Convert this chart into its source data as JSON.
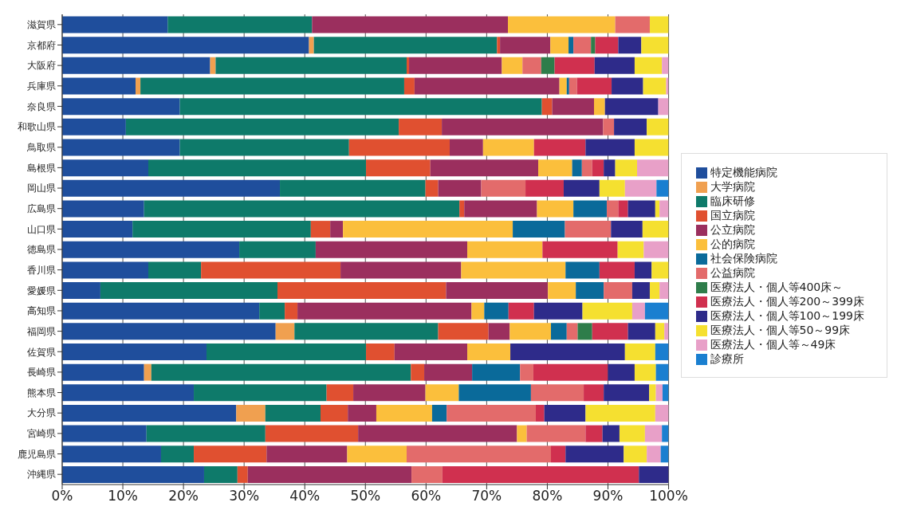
{
  "chart_data": {
    "type": "bar",
    "orientation": "horizontal",
    "stacked": true,
    "categories": [
      "滋賀県",
      "京都府",
      "大阪府",
      "兵庫県",
      "奈良県",
      "和歌山県",
      "鳥取県",
      "島根県",
      "岡山県",
      "広島県",
      "山口県",
      "徳島県",
      "香川県",
      "愛媛県",
      "高知県",
      "福岡県",
      "佐賀県",
      "長崎県",
      "熊本県",
      "大分県",
      "宮崎県",
      "鹿児島県",
      "沖縄県"
    ],
    "series": [
      {
        "name": "特定機能病院",
        "color": "#1f4e9c",
        "values": [
          17.4,
          40.7,
          24.4,
          12.1,
          19.4,
          10.5,
          19.4,
          14.2,
          35.9,
          13.5,
          11.6,
          29.2,
          14.2,
          6.3,
          32.5,
          35.2,
          23.8,
          13.5,
          21.7,
          28.7,
          13.9,
          16.3,
          23.4
        ]
      },
      {
        "name": "大学病院",
        "color": "#f0a050",
        "values": [
          0,
          0.8,
          0.9,
          0.8,
          0,
          0,
          0,
          0,
          0,
          0,
          0,
          0,
          0,
          0,
          0,
          3.1,
          0,
          1.2,
          0,
          4.8,
          0,
          0,
          0
        ]
      },
      {
        "name": "臨床研修",
        "color": "#0e7a6a",
        "values": [
          23.8,
          30.2,
          31.5,
          43.5,
          59.7,
          45.0,
          27.9,
          35.9,
          24.0,
          52.0,
          29.4,
          12.6,
          8.7,
          29.2,
          4.2,
          23.7,
          26.3,
          42.8,
          21.9,
          9.1,
          19.6,
          5.4,
          5.5
        ]
      },
      {
        "name": "国立病院",
        "color": "#e05030",
        "values": [
          0,
          0.5,
          0.4,
          1.7,
          1.7,
          7.1,
          16.6,
          10.6,
          2.1,
          0.8,
          3.2,
          0,
          23.0,
          27.8,
          2.1,
          8.3,
          4.7,
          2.2,
          4.4,
          4.5,
          15.3,
          12.0,
          1.7
        ]
      },
      {
        "name": "公立病院",
        "color": "#9b2f5e",
        "values": [
          32.3,
          8.3,
          15.3,
          23.9,
          6.9,
          26.6,
          5.5,
          17.8,
          7.1,
          12.0,
          2.1,
          25.0,
          19.9,
          16.8,
          28.7,
          3.5,
          12.0,
          7.9,
          11.9,
          4.7,
          26.2,
          13.3,
          27.0
        ]
      },
      {
        "name": "公的病院",
        "color": "#fbbf3c",
        "values": [
          17.7,
          3.0,
          3.4,
          1.2,
          1.8,
          0,
          8.4,
          5.6,
          0,
          6.0,
          28.0,
          12.4,
          17.2,
          4.6,
          2.1,
          6.8,
          7.1,
          0,
          5.5,
          9.2,
          1.6,
          9.8,
          0
        ]
      },
      {
        "name": "社会保険病院",
        "color": "#0a6a9a",
        "values": [
          0,
          0.8,
          0,
          0.4,
          0,
          0,
          0,
          1.6,
          0,
          5.5,
          8.6,
          0,
          5.6,
          4.6,
          4.0,
          2.6,
          0,
          7.9,
          11.9,
          2.4,
          0,
          0,
          0
        ]
      },
      {
        "name": "公益病院",
        "color": "#e36b6b",
        "values": [
          5.7,
          2.9,
          3.1,
          1.3,
          0,
          1.8,
          0,
          1.7,
          7.3,
          1.9,
          7.6,
          0,
          0,
          4.7,
          0,
          1.8,
          0,
          2.2,
          8.7,
          14.7,
          9.7,
          23.8,
          5.1
        ]
      },
      {
        "name": "医療法人・個人等400床～",
        "color": "#2e7d4a",
        "values": [
          0,
          0.7,
          2.2,
          0,
          0,
          0,
          0,
          0,
          0,
          0,
          0,
          0,
          0,
          0,
          0,
          2.4,
          0,
          0,
          0,
          0,
          0,
          0,
          0
        ]
      },
      {
        "name": "医療法人・個人等200～399床",
        "color": "#d0304f",
        "values": [
          0,
          3.8,
          6.6,
          5.7,
          0,
          0,
          8.5,
          1.9,
          6.3,
          1.6,
          0,
          12.4,
          5.8,
          0,
          4.2,
          5.9,
          0,
          12.3,
          3.3,
          1.4,
          2.8,
          2.4,
          32.4
        ]
      },
      {
        "name": "医療法人・個人等100～199床",
        "color": "#2e2b8a",
        "values": [
          0,
          3.8,
          6.6,
          5.2,
          8.8,
          5.4,
          8.1,
          1.9,
          5.9,
          4.5,
          5.2,
          0,
          2.8,
          2.9,
          8.0,
          4.5,
          18.9,
          4.4,
          7.5,
          6.8,
          2.8,
          9.6,
          4.9
        ]
      },
      {
        "name": "医療法人・個人等50～99床",
        "color": "#f5e030",
        "values": [
          3.1,
          4.5,
          4.5,
          3.8,
          0,
          3.6,
          5.6,
          3.6,
          4.2,
          0.7,
          4.3,
          4.3,
          2.8,
          1.6,
          8.2,
          1.5,
          5.0,
          3.5,
          1.1,
          11.5,
          4.2,
          3.8,
          0
        ]
      },
      {
        "name": "医療法人・個人等～49床",
        "color": "#e8a0c8",
        "values": [
          0,
          0,
          1.1,
          0.4,
          1.7,
          0,
          0,
          5.2,
          5.2,
          1.5,
          0,
          4.1,
          0,
          1.5,
          2.1,
          0.7,
          0,
          0,
          1.1,
          2.2,
          2.8,
          2.3,
          0
        ]
      },
      {
        "name": "診療所",
        "color": "#1a7fd0",
        "values": [
          0,
          0,
          0,
          0,
          0,
          0,
          0,
          0,
          2.0,
          0,
          0,
          0,
          0,
          0,
          3.9,
          0,
          2.2,
          2.1,
          1.0,
          0,
          1.1,
          1.3,
          0
        ]
      }
    ],
    "xlim": [
      0,
      100
    ],
    "xticks": [
      {
        "value": 0,
        "label": "0%"
      },
      {
        "value": 10,
        "label": "10%"
      },
      {
        "value": 20,
        "label": "20%"
      },
      {
        "value": 30,
        "label": "30%"
      },
      {
        "value": 40,
        "label": "40%"
      },
      {
        "value": 50,
        "label": "50%"
      },
      {
        "value": 60,
        "label": "60%"
      },
      {
        "value": 70,
        "label": "70%"
      },
      {
        "value": 80,
        "label": "80%"
      },
      {
        "value": 90,
        "label": "90%"
      },
      {
        "value": 100,
        "label": "100%"
      }
    ],
    "grid": "x",
    "legend": "right"
  }
}
